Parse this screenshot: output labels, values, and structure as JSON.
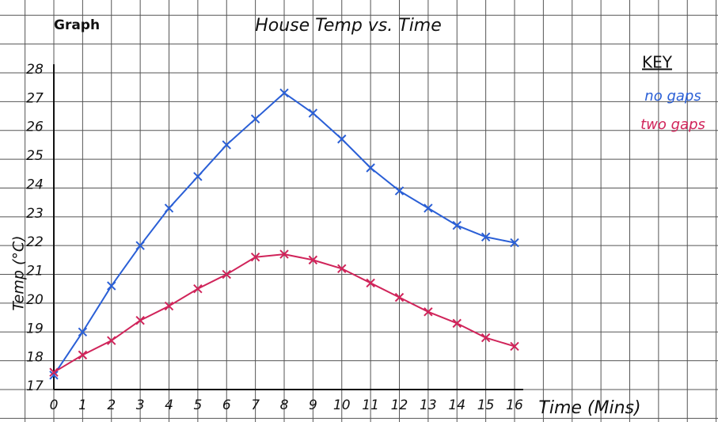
{
  "chart_data": {
    "type": "line",
    "header": "Graph",
    "title": "House Temp vs. Time",
    "x_label": "Time (Mins)",
    "y_label": "Temp (°C)",
    "legend_title": "KEY",
    "legend": "top-right",
    "grid": true,
    "x": [
      0,
      1,
      2,
      3,
      4,
      5,
      6,
      7,
      8,
      9,
      10,
      11,
      12,
      13,
      14,
      15,
      16
    ],
    "series": [
      {
        "name": "no gaps",
        "color": "#2a5fd6",
        "values": [
          17.5,
          19.0,
          20.6,
          22.0,
          23.3,
          24.4,
          25.5,
          26.4,
          27.3,
          26.6,
          25.7,
          24.7,
          23.9,
          23.3,
          22.7,
          22.3,
          22.1
        ]
      },
      {
        "name": "two gaps",
        "color": "#d0245a",
        "values": [
          17.6,
          18.2,
          18.7,
          19.4,
          19.9,
          20.5,
          21.0,
          21.6,
          21.7,
          21.5,
          21.2,
          20.7,
          20.2,
          19.7,
          19.3,
          18.8,
          18.5
        ]
      }
    ],
    "xlim": [
      0,
      16
    ],
    "xticks": [
      0,
      1,
      2,
      3,
      4,
      5,
      6,
      7,
      8,
      9,
      10,
      11,
      12,
      13,
      14,
      15,
      16
    ],
    "ylim": [
      17,
      28
    ],
    "yticks": [
      17,
      18,
      19,
      20,
      21,
      22,
      23,
      24,
      25,
      26,
      27,
      28
    ]
  }
}
